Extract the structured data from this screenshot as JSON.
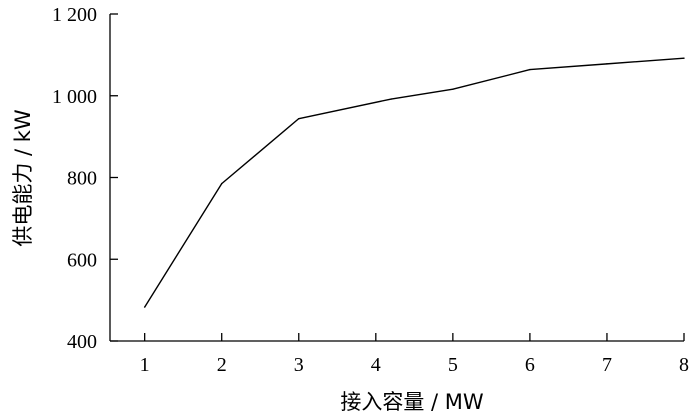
{
  "chart_data": {
    "type": "line",
    "xlabel": "接入容量 / MW",
    "ylabel": "供电能力 / kW",
    "x": [
      1,
      2,
      3,
      4.2,
      5,
      6,
      7,
      8
    ],
    "series": [
      {
        "values": [
          483,
          785,
          944,
          992,
          1016,
          1064,
          1078,
          1092
        ]
      }
    ],
    "xlim": [
      0.55,
      8
    ],
    "ylim": [
      400,
      1200
    ],
    "xticks": [
      1,
      2,
      3,
      4,
      5,
      6,
      7,
      8
    ],
    "xtick_labels": [
      "1",
      "2",
      "3",
      "4",
      "5",
      "6",
      "7",
      "8"
    ],
    "yticks": [
      400,
      600,
      800,
      1000,
      1200
    ],
    "ytick_labels": [
      "400",
      "600",
      "800",
      "1 000",
      "1 200"
    ],
    "grid": false,
    "legend": "none",
    "line_color": "#000000"
  }
}
